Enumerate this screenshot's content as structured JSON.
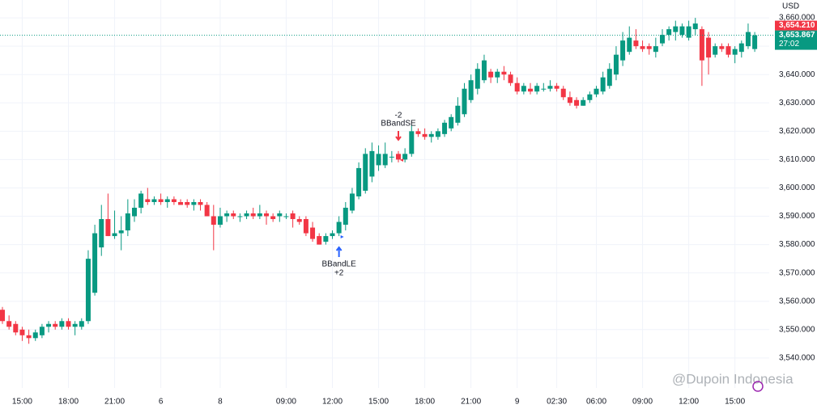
{
  "chart_data": {
    "type": "candlestick",
    "currency": "USD",
    "categories": [
      null,
      null,
      null,
      "15:00",
      null,
      null,
      null,
      null,
      null,
      null,
      "18:00",
      null,
      null,
      null,
      null,
      null,
      null,
      "21:00",
      null,
      null,
      null,
      null,
      null,
      null,
      "6",
      null,
      null,
      null,
      null,
      null,
      null,
      null,
      null,
      "8",
      null,
      null,
      null,
      null,
      null,
      null,
      null,
      null,
      null,
      "09:00",
      null,
      null,
      null,
      null,
      null,
      null,
      "12:00",
      null,
      null,
      null,
      null,
      null,
      null,
      "15:00",
      null,
      null,
      null,
      null,
      null,
      null,
      "18:00",
      null,
      null,
      null,
      null,
      null,
      null,
      "21:00",
      null,
      null,
      null,
      null,
      null,
      null,
      "9",
      null,
      null,
      null,
      null,
      null,
      "02:30",
      null,
      null,
      null,
      null,
      null,
      "06:00",
      null,
      null,
      null,
      null,
      null,
      null,
      "09:00",
      null,
      null,
      null,
      null,
      null,
      null,
      "12:00",
      null,
      null,
      null,
      null,
      null,
      null,
      "15:00",
      null,
      null,
      null
    ],
    "candles": [
      [
        3557,
        3558,
        3552,
        3553
      ],
      [
        3553,
        3555,
        3550,
        3551
      ],
      [
        3552,
        3553,
        3548,
        3549
      ],
      [
        3550,
        3551,
        3546,
        3548
      ],
      [
        3548,
        3550,
        3545,
        3547
      ],
      [
        3547,
        3550,
        3546,
        3549
      ],
      [
        3548,
        3552,
        3547,
        3551
      ],
      [
        3551,
        3553,
        3549,
        3552
      ],
      [
        3552,
        3553,
        3550,
        3551
      ],
      [
        3551,
        3554,
        3550,
        3553
      ],
      [
        3553,
        3554,
        3550,
        3551
      ],
      [
        3551,
        3553,
        3548,
        3552
      ],
      [
        3551,
        3554,
        3550,
        3553
      ],
      [
        3553,
        3578,
        3552,
        3575
      ],
      [
        3563,
        3587,
        3562,
        3584
      ],
      [
        3579,
        3594,
        3576,
        3589
      ],
      [
        3589,
        3598,
        3583,
        3583
      ],
      [
        3583,
        3592,
        3582,
        3584
      ],
      [
        3584,
        3590,
        3578,
        3585
      ],
      [
        3585,
        3596,
        3583,
        3591
      ],
      [
        3590,
        3596,
        3588,
        3593
      ],
      [
        3593,
        3599,
        3591,
        3598
      ],
      [
        3596,
        3600,
        3594,
        3595
      ],
      [
        3595,
        3597,
        3594,
        3596
      ],
      [
        3596,
        3598,
        3594,
        3595
      ],
      [
        3595,
        3597,
        3593,
        3596
      ],
      [
        3596,
        3597,
        3594,
        3595
      ],
      [
        3595,
        3596,
        3594,
        3594
      ],
      [
        3595,
        3596,
        3593,
        3594
      ],
      [
        3594,
        3596,
        3592,
        3595
      ],
      [
        3595,
        3596,
        3592,
        3594
      ],
      [
        3594,
        3595,
        3590,
        3590
      ],
      [
        3590,
        3594,
        3578,
        3587
      ],
      [
        3587,
        3593,
        3586,
        3590
      ],
      [
        3590,
        3592,
        3588,
        3591
      ],
      [
        3591,
        3592,
        3589,
        3590
      ],
      [
        3590,
        3591,
        3588,
        3590
      ],
      [
        3590,
        3592,
        3589,
        3591
      ],
      [
        3591,
        3593,
        3589,
        3590
      ],
      [
        3590,
        3594,
        3589,
        3591
      ],
      [
        3591,
        3592,
        3587,
        3590
      ],
      [
        3590,
        3591,
        3588,
        3589
      ],
      [
        3590,
        3592,
        3588,
        3591
      ],
      [
        3590,
        3591,
        3589,
        3590
      ],
      [
        3591,
        3592,
        3586,
        3589
      ],
      [
        3589,
        3590,
        3587,
        3588
      ],
      [
        3589,
        3590,
        3583,
        3584
      ],
      [
        3586,
        3588,
        3581,
        3582
      ],
      [
        3583,
        3584,
        3580,
        3580
      ],
      [
        3581,
        3584,
        3580,
        3583
      ],
      [
        3583,
        3585,
        3582,
        3584
      ],
      [
        3584,
        3590,
        3583,
        3588
      ],
      [
        3587,
        3595,
        3585,
        3593
      ],
      [
        3592,
        3600,
        3591,
        3598
      ],
      [
        3597,
        3609,
        3596,
        3607
      ],
      [
        3599,
        3614,
        3598,
        3612
      ],
      [
        3604,
        3616,
        3602,
        3613
      ],
      [
        3608,
        3615,
        3606,
        3612
      ],
      [
        3608,
        3616,
        3607,
        3612
      ],
      [
        3611,
        3613,
        3609,
        3611
      ],
      [
        3612,
        3613,
        3609,
        3610
      ],
      [
        3610,
        3614,
        3609,
        3612
      ],
      [
        3612,
        3622,
        3611,
        3620
      ],
      [
        3620,
        3621,
        3618,
        3619
      ],
      [
        3619,
        3621,
        3617,
        3618
      ],
      [
        3618,
        3620,
        3616,
        3619
      ],
      [
        3618,
        3621,
        3617,
        3620
      ],
      [
        3619,
        3624,
        3618,
        3623
      ],
      [
        3621,
        3626,
        3620,
        3625
      ],
      [
        3623,
        3632,
        3622,
        3629
      ],
      [
        3626,
        3637,
        3625,
        3635
      ],
      [
        3631,
        3640,
        3630,
        3638
      ],
      [
        3635,
        3644,
        3633,
        3642
      ],
      [
        3638,
        3647,
        3637,
        3645
      ],
      [
        3641,
        3642,
        3637,
        3639
      ],
      [
        3639,
        3642,
        3637,
        3641
      ],
      [
        3641,
        3643,
        3638,
        3640
      ],
      [
        3640,
        3641,
        3636,
        3637
      ],
      [
        3637,
        3639,
        3633,
        3634
      ],
      [
        3634,
        3637,
        3633,
        3636
      ],
      [
        3635,
        3637,
        3633,
        3634
      ],
      [
        3634,
        3637,
        3633,
        3636
      ],
      [
        3635,
        3637,
        3634,
        3635
      ],
      [
        3635,
        3638,
        3634,
        3636
      ],
      [
        3636,
        3637,
        3634,
        3635
      ],
      [
        3635,
        3636,
        3631,
        3632
      ],
      [
        3632,
        3634,
        3629,
        3630
      ],
      [
        3631,
        3632,
        3628,
        3629
      ],
      [
        3629,
        3632,
        3629,
        3631
      ],
      [
        3631,
        3634,
        3630,
        3633
      ],
      [
        3633,
        3636,
        3632,
        3635
      ],
      [
        3634,
        3641,
        3633,
        3639
      ],
      [
        3636,
        3644,
        3635,
        3642
      ],
      [
        3640,
        3650,
        3638,
        3647
      ],
      [
        3645,
        3655,
        3643,
        3652
      ],
      [
        3648,
        3657,
        3647,
        3653
      ],
      [
        3652,
        3656,
        3649,
        3650
      ],
      [
        3650,
        3652,
        3648,
        3649
      ],
      [
        3650,
        3651,
        3647,
        3649
      ],
      [
        3648,
        3653,
        3646,
        3650
      ],
      [
        3651,
        3656,
        3650,
        3654
      ],
      [
        3654,
        3657,
        3652,
        3656
      ],
      [
        3655,
        3659,
        3652,
        3657
      ],
      [
        3654,
        3658,
        3653,
        3657
      ],
      [
        3653,
        3659,
        3652,
        3657
      ],
      [
        3656,
        3660,
        3654,
        3658
      ],
      [
        3656,
        3657,
        3636,
        3645
      ],
      [
        3653,
        3655,
        3640,
        3646
      ],
      [
        3647,
        3651,
        3646,
        3650
      ],
      [
        3650,
        3651,
        3648,
        3649
      ],
      [
        3650,
        3651,
        3646,
        3647
      ],
      [
        3647,
        3650,
        3644,
        3649
      ],
      [
        3648,
        3652,
        3646,
        3651
      ],
      [
        3650,
        3658,
        3649,
        3655
      ],
      [
        3649,
        3655,
        3648,
        3653.867
      ]
    ],
    "up_color": "#089981",
    "down_color": "#f23645",
    "ylim": [
      3529.4,
      3666.3
    ],
    "yticks": [
      {
        "value": 3540,
        "label": "3,540.000"
      },
      {
        "value": 3550,
        "label": "3,550.000"
      },
      {
        "value": 3560,
        "label": "3,560.000"
      },
      {
        "value": 3570,
        "label": "3,570.000"
      },
      {
        "value": 3580,
        "label": "3,580.000"
      },
      {
        "value": 3590,
        "label": "3,590.000"
      },
      {
        "value": 3600,
        "label": "3,600.000"
      },
      {
        "value": 3610,
        "label": "3,610.000"
      },
      {
        "value": 3620,
        "label": "3,620.000"
      },
      {
        "value": 3630,
        "label": "3,630.000"
      },
      {
        "value": 3640,
        "label": "3,640.000"
      },
      {
        "value": 3650,
        "label": "3,650.000"
      },
      {
        "value": 3660,
        "label": "3,660.000"
      }
    ],
    "grid": true,
    "price_labels": [
      {
        "value": 3654.21,
        "label": "3,654.210",
        "color": "#f23645"
      },
      {
        "value": 3653.867,
        "label": "3,653.867",
        "countdown": "27:02",
        "color": "#089981"
      }
    ],
    "annotations": [
      {
        "label": "BBandSE",
        "amount": "-2"
      },
      {
        "label": "BBandLE",
        "amount": "+2"
      }
    ],
    "watermark": "@Dupoin Indonesia"
  }
}
